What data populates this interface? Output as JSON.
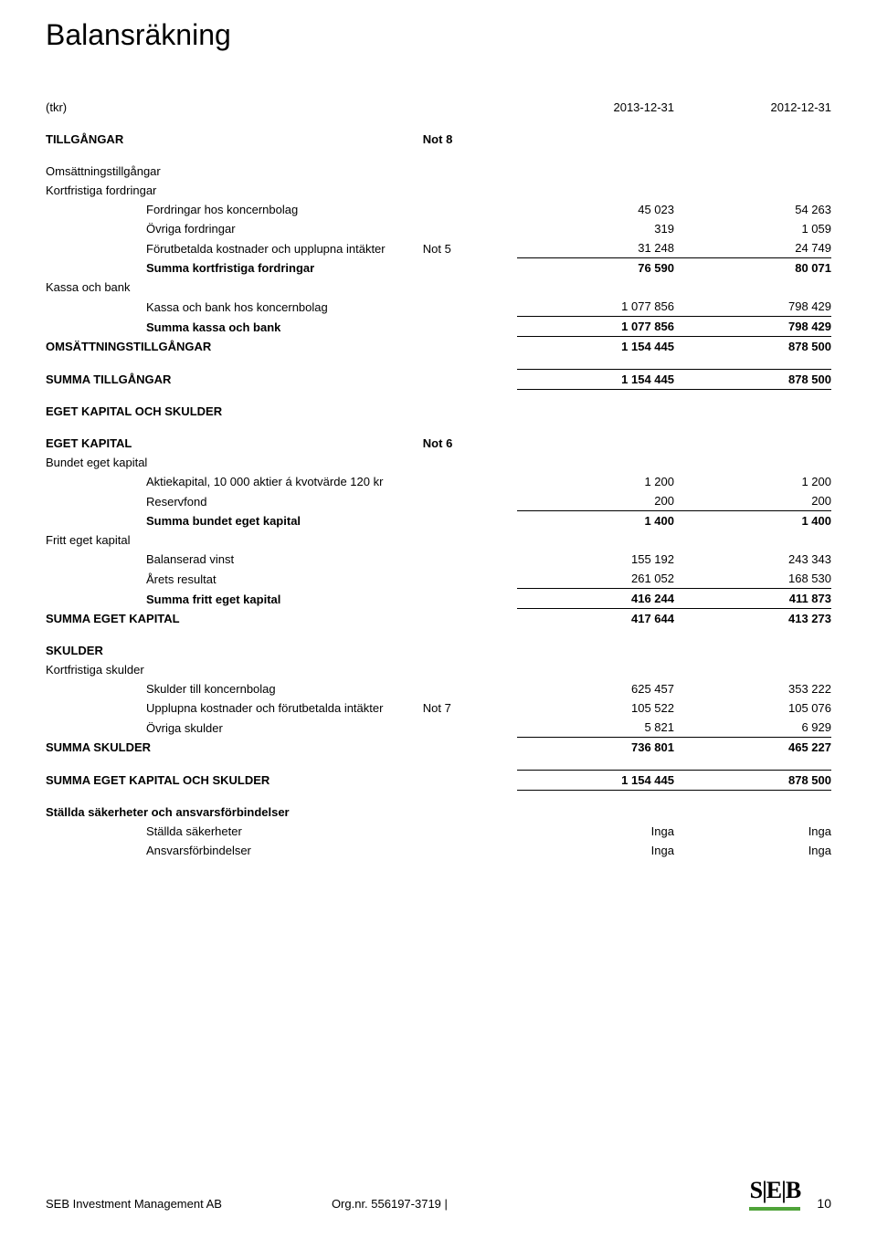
{
  "page_title": "Balansräkning",
  "header": {
    "unit": "(tkr)",
    "col_a": "2013-12-31",
    "col_b": "2012-12-31"
  },
  "sections": {
    "tillgangar": {
      "label": "TILLGÅNGAR",
      "note": "Not 8"
    },
    "oms_tillg": "Omsättningstillgångar",
    "kort_fordr": "Kortfristiga fordringar",
    "fordr_koncern": {
      "label": "Fordringar hos koncernbolag",
      "a": "45 023",
      "b": "54 263"
    },
    "ovriga_fordr": {
      "label": "Övriga fordringar",
      "a": "319",
      "b": "1 059"
    },
    "forutbet": {
      "label": "Förutbetalda kostnader och upplupna intäkter",
      "note": "Not 5",
      "a": "31 248",
      "b": "24 749"
    },
    "sum_kort_fordr": {
      "label": "Summa kortfristiga fordringar",
      "a": "76 590",
      "b": "80 071"
    },
    "kassa_bank": "Kassa och bank",
    "kassa_koncern": {
      "label": "Kassa och bank hos koncernbolag",
      "a": "1 077 856",
      "b": "798 429"
    },
    "sum_kassa": {
      "label": "Summa kassa och bank",
      "a": "1 077 856",
      "b": "798 429"
    },
    "oms_tillg_sum": {
      "label": "OMSÄTTNINGSTILLGÅNGAR",
      "a": "1 154 445",
      "b": "878 500"
    },
    "sum_tillg": {
      "label": "SUMMA TILLGÅNGAR",
      "a": "1 154 445",
      "b": "878 500"
    },
    "ek_skulder": "EGET KAPITAL OCH SKULDER",
    "ek": {
      "label": "EGET KAPITAL",
      "note": "Not 6"
    },
    "bundet": "Bundet eget kapital",
    "aktiekap": {
      "label": "Aktiekapital, 10 000 aktier á kvotvärde 120 kr",
      "a": "1 200",
      "b": "1 200"
    },
    "reservfond": {
      "label": "Reservfond",
      "a": "200",
      "b": "200"
    },
    "sum_bundet": {
      "label": "Summa bundet eget kapital",
      "a": "1 400",
      "b": "1 400"
    },
    "fritt": "Fritt eget kapital",
    "bal_vinst": {
      "label": "Balanserad vinst",
      "a": "155 192",
      "b": "243 343"
    },
    "arets_res": {
      "label": "Årets resultat",
      "a": "261 052",
      "b": "168 530"
    },
    "sum_fritt": {
      "label": "Summa fritt eget kapital",
      "a": "416 244",
      "b": "411 873"
    },
    "sum_ek": {
      "label": "SUMMA EGET KAPITAL",
      "a": "417 644",
      "b": "413 273"
    },
    "skulder": "SKULDER",
    "kort_skulder": "Kortfristiga skulder",
    "skuld_koncern": {
      "label": "Skulder till koncernbolag",
      "a": "625 457",
      "b": "353 222"
    },
    "upplupna": {
      "label": "Upplupna kostnader och förutbetalda intäkter",
      "note": "Not 7",
      "a": "105 522",
      "b": "105 076"
    },
    "ovr_skuld": {
      "label": "Övriga skulder",
      "a": "5 821",
      "b": "6 929"
    },
    "sum_skuld": {
      "label": "SUMMA SKULDER",
      "a": "736 801",
      "b": "465 227"
    },
    "sum_ek_skuld": {
      "label": "SUMMA EGET KAPITAL OCH SKULDER",
      "a": "1 154 445",
      "b": "878 500"
    },
    "stallda": "Ställda säkerheter och ansvarsförbindelser",
    "stallda_sak": {
      "label": "Ställda säkerheter",
      "a": "Inga",
      "b": "Inga"
    },
    "ansvar": {
      "label": "Ansvarsförbindelser",
      "a": "Inga",
      "b": "Inga"
    }
  },
  "footer": {
    "company": "SEB Investment Management AB",
    "orgnr": "Org.nr. 556197-3719 |",
    "page": "10",
    "logo_text": "S|E|B"
  }
}
